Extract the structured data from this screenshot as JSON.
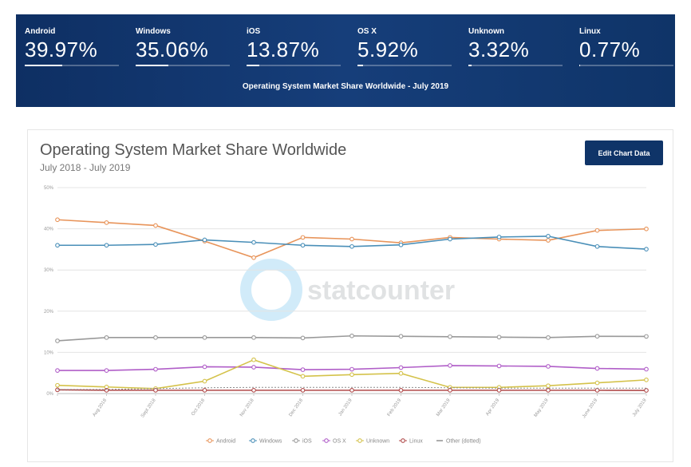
{
  "banner": {
    "stats": [
      {
        "name": "Android",
        "value": "39.97%",
        "pct": 39.97
      },
      {
        "name": "Windows",
        "value": "35.06%",
        "pct": 35.06
      },
      {
        "name": "iOS",
        "value": "13.87%",
        "pct": 13.87
      },
      {
        "name": "OS X",
        "value": "5.92%",
        "pct": 5.92
      },
      {
        "name": "Unknown",
        "value": "3.32%",
        "pct": 3.32
      },
      {
        "name": "Linux",
        "value": "0.77%",
        "pct": 0.77
      }
    ],
    "subtitle": "Operating System Market Share Worldwide - July 2019"
  },
  "card": {
    "title": "Operating System Market Share Worldwide",
    "range": "July 2018 - July 2019",
    "edit_button": "Edit Chart Data",
    "watermark": "statcounter"
  },
  "chart_data": {
    "type": "line",
    "title": "Operating System Market Share Worldwide",
    "subtitle": "July 2018 - July 2019",
    "xlabel": "",
    "ylabel": "",
    "ylim": [
      0,
      50
    ],
    "yticks": [
      "0%",
      "10%",
      "20%",
      "30%",
      "40%",
      "50%"
    ],
    "grid": true,
    "legend_position": "bottom",
    "categories": [
      "July 2018",
      "Aug 2018",
      "Sept 2018",
      "Oct 2018",
      "Nov 2018",
      "Dec 2018",
      "Jan 2019",
      "Feb 2019",
      "Mar 2019",
      "Apr 2019",
      "May 2019",
      "June 2019",
      "July 2019"
    ],
    "xtick_labels": [
      "",
      "Aug 2018",
      "Sept 2018",
      "Oct 2018",
      "Nov 2018",
      "Dec 2018",
      "Jan 2019",
      "Feb 2019",
      "Mar 2019",
      "Apr 2019",
      "May 2019",
      "June 2019",
      "July 2019"
    ],
    "series": [
      {
        "name": "Android",
        "color": "#e8945a",
        "values": [
          42.2,
          41.5,
          40.8,
          37.0,
          33.0,
          37.9,
          37.5,
          36.6,
          37.9,
          37.5,
          37.2,
          39.6,
          39.97
        ]
      },
      {
        "name": "Windows",
        "color": "#4a8fb8",
        "values": [
          36.0,
          36.0,
          36.2,
          37.3,
          36.7,
          36.0,
          35.7,
          36.1,
          37.5,
          38.0,
          38.2,
          35.7,
          35.06
        ]
      },
      {
        "name": "iOS",
        "color": "#999999",
        "values": [
          12.8,
          13.6,
          13.6,
          13.6,
          13.6,
          13.5,
          14.0,
          13.9,
          13.8,
          13.7,
          13.6,
          13.9,
          13.87
        ]
      },
      {
        "name": "OS X",
        "color": "#b05ec8",
        "values": [
          5.6,
          5.6,
          5.9,
          6.5,
          6.4,
          5.8,
          5.9,
          6.3,
          6.8,
          6.7,
          6.6,
          6.1,
          5.92
        ]
      },
      {
        "name": "Unknown",
        "color": "#d4c24a",
        "values": [
          2.0,
          1.6,
          1.2,
          3.0,
          8.2,
          4.2,
          4.6,
          4.9,
          1.5,
          1.5,
          1.9,
          2.6,
          3.32
        ]
      },
      {
        "name": "Linux",
        "color": "#b04a4a",
        "values": [
          0.9,
          0.8,
          0.8,
          0.8,
          0.8,
          0.8,
          0.8,
          0.8,
          0.8,
          0.8,
          0.8,
          0.8,
          0.77
        ]
      },
      {
        "name": "Other (dotted)",
        "color": "#8a8a8a",
        "dotted": true,
        "values": [
          1.0,
          1.0,
          1.2,
          1.4,
          1.5,
          1.5,
          1.5,
          1.5,
          1.4,
          1.3,
          1.3,
          1.3,
          1.3
        ]
      }
    ]
  }
}
